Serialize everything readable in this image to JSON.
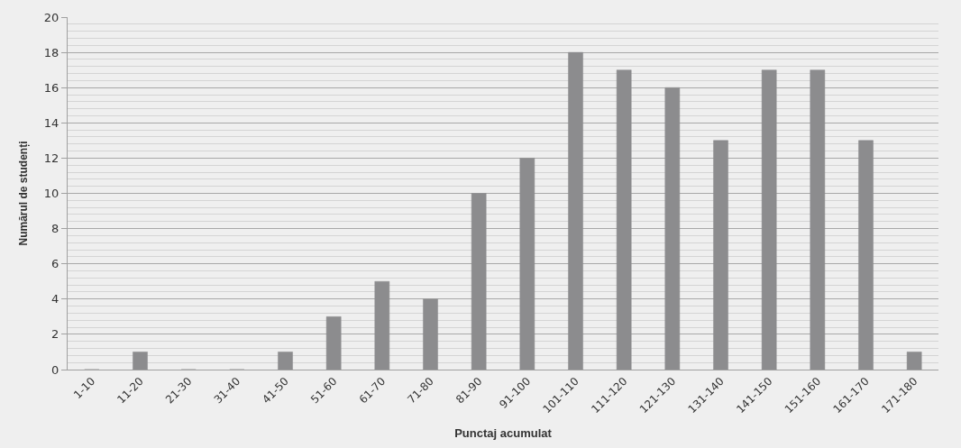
{
  "chart_data": {
    "type": "bar",
    "xlabel": "Punctaj acumulat",
    "ylabel": "Numărul de studenți",
    "categories": [
      "1-10",
      "11-20",
      "21-30",
      "31-40",
      "41-50",
      "51-60",
      "61-70",
      "71-80",
      "81-90",
      "91-100",
      "101-110",
      "111-120",
      "121-130",
      "131-140",
      "141-150",
      "151-160",
      "161-170",
      "171-180"
    ],
    "values": [
      0,
      1,
      0,
      0,
      1,
      3,
      5,
      4,
      10,
      12,
      18,
      17,
      16,
      13,
      17,
      17,
      13,
      1
    ],
    "color": "#8c8c8e",
    "ylim": [
      0,
      20
    ],
    "yticks": [
      0,
      2,
      4,
      6,
      8,
      10,
      12,
      14,
      16,
      18,
      20
    ],
    "grid": "y",
    "legend": false
  }
}
